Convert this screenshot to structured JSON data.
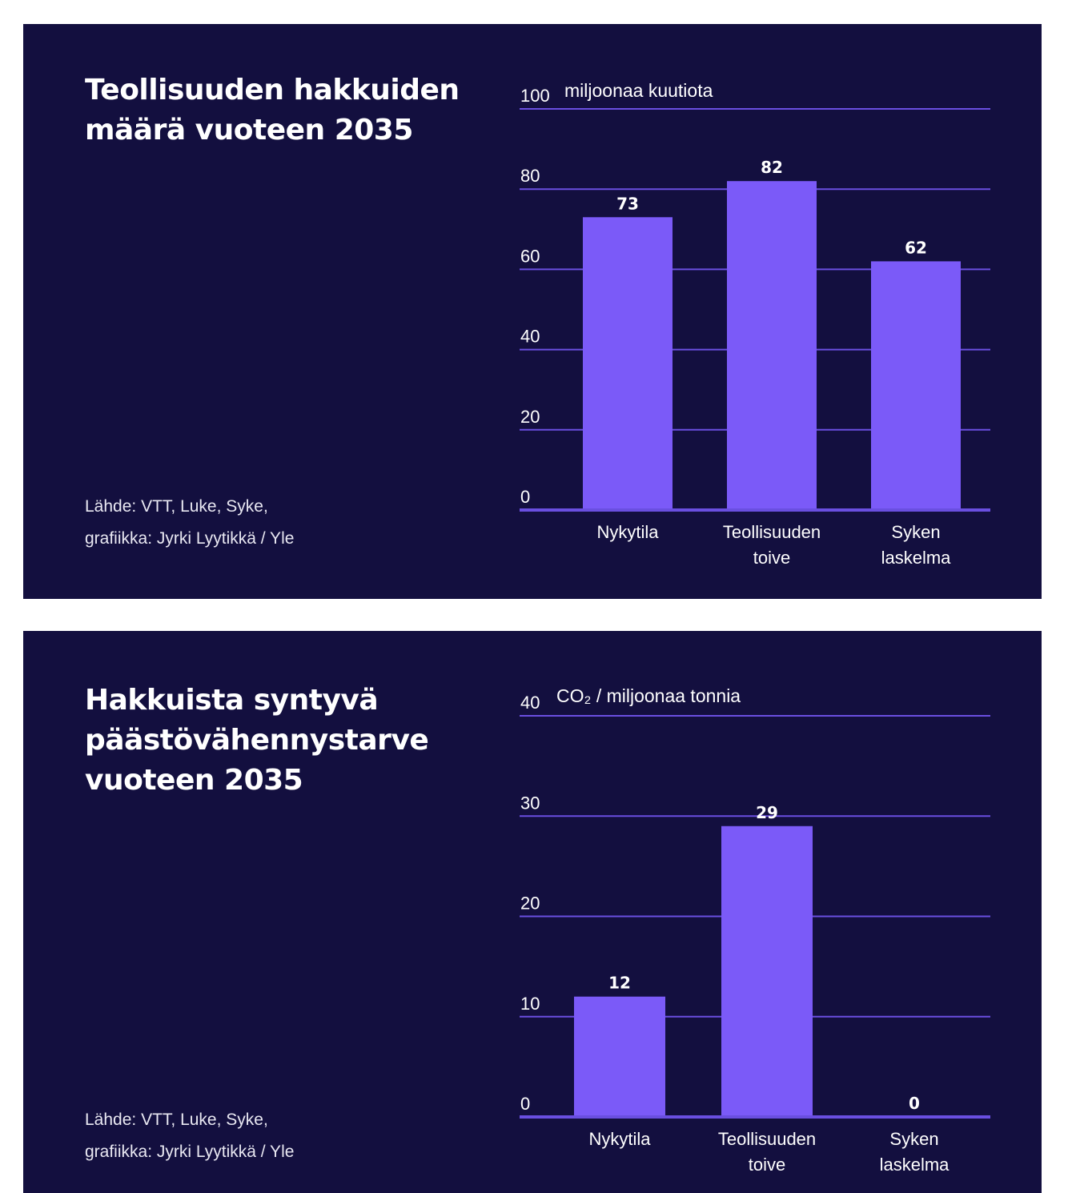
{
  "colors": {
    "background": "#130f3f",
    "bar": "#7b5af8",
    "grid": "#6a4fe0",
    "text": "#ffffff"
  },
  "chart_data": [
    {
      "type": "bar",
      "title": "Teollisuuden hakkuiden määrä vuoteen 2035",
      "ylabel": "miljoonaa kuutiota",
      "ylim": [
        0,
        100
      ],
      "yticks": [
        0,
        20,
        40,
        60,
        80,
        100
      ],
      "categories": [
        [
          "Nykytila"
        ],
        [
          "Teollisuuden",
          "toive"
        ],
        [
          "Syken",
          "laskelma"
        ]
      ],
      "values": [
        73,
        82,
        62
      ],
      "grid": true,
      "source": [
        "Lähde: VTT, Luke, Syke,",
        "grafiikka: Jyrki Lyytikkä  / Yle"
      ]
    },
    {
      "type": "bar",
      "title": "Hakkuista syntyvä päästövähennystarve vuoteen 2035",
      "ylabel": "CO₂ /  miljoonaa tonnia",
      "ylim": [
        0,
        40
      ],
      "yticks": [
        0,
        10,
        20,
        30,
        40
      ],
      "categories": [
        [
          "Nykytila"
        ],
        [
          "Teollisuuden",
          "toive"
        ],
        [
          "Syken",
          "laskelma"
        ]
      ],
      "values": [
        12,
        29,
        0
      ],
      "grid": true,
      "source": [
        "Lähde: VTT, Luke, Syke,",
        "grafiikka: Jyrki Lyytikkä  / Yle"
      ]
    }
  ]
}
